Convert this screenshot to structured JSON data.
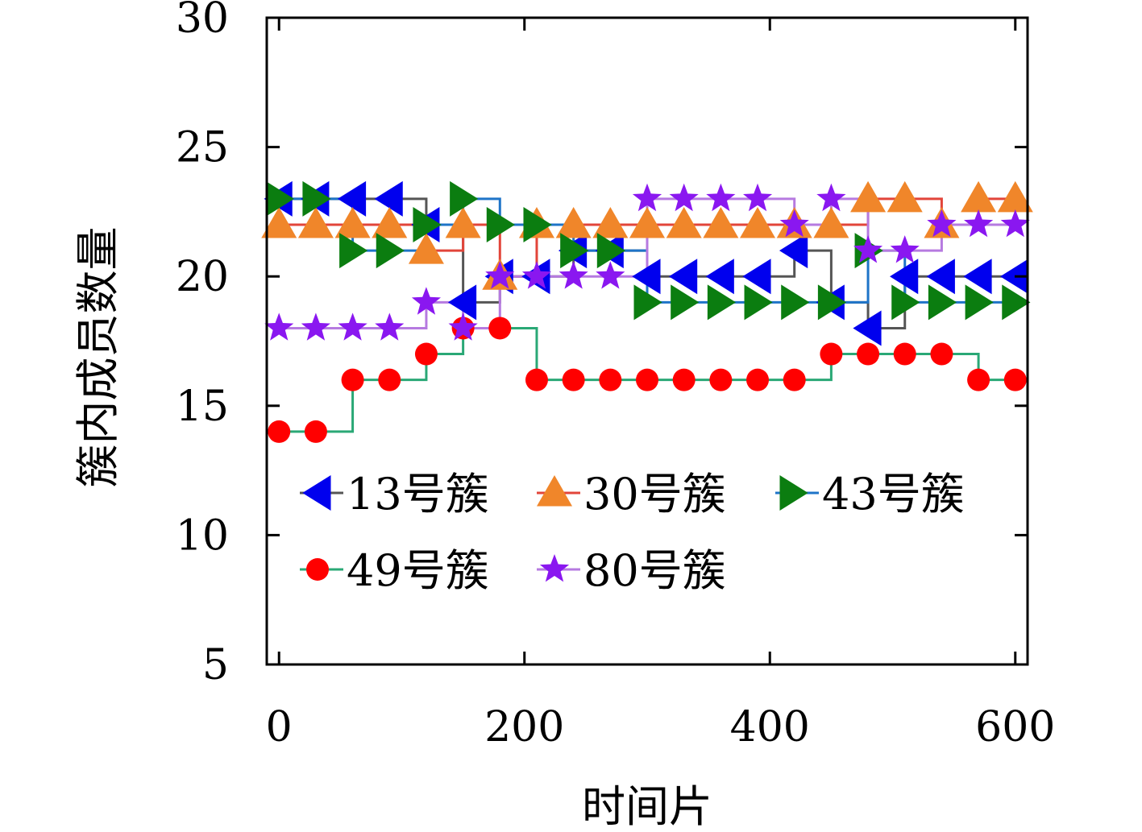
{
  "chart_data": {
    "type": "line",
    "xlabel": "时间片",
    "ylabel": "簇内成员数量",
    "xlim": [
      -10,
      610
    ],
    "ylim": [
      5,
      30
    ],
    "xticks": [
      0,
      200,
      400,
      600
    ],
    "yticks": [
      5,
      10,
      15,
      20,
      25,
      30
    ],
    "line_style": "step-post",
    "grid": false,
    "legend_placement": "lower-left, two rows",
    "x": [
      0,
      30,
      60,
      90,
      120,
      150,
      180,
      210,
      240,
      270,
      300,
      330,
      360,
      390,
      420,
      450,
      480,
      510,
      540,
      570,
      600
    ],
    "series": [
      {
        "name": "13号簇",
        "marker": "triangle-left",
        "marker_color": "#0000ee",
        "line_color": "#555555",
        "values": [
          23,
          23,
          23,
          23,
          22,
          19,
          20,
          20,
          21,
          21,
          20,
          20,
          20,
          20,
          21,
          19,
          18,
          20,
          20,
          20,
          20
        ]
      },
      {
        "name": "30号簇",
        "marker": "triangle-up",
        "marker_color": "#f0862a",
        "line_color": "#e2453a",
        "values": [
          22,
          22,
          22,
          22,
          21,
          22,
          20,
          22,
          22,
          22,
          22,
          22,
          22,
          22,
          22,
          22,
          23,
          23,
          22,
          23,
          23
        ]
      },
      {
        "name": "43号簇",
        "marker": "triangle-right",
        "marker_color": "#0b7d10",
        "line_color": "#1e74c8",
        "values": [
          23,
          23,
          21,
          21,
          22,
          23,
          22,
          22,
          21,
          21,
          19,
          19,
          19,
          19,
          19,
          19,
          21,
          19,
          19,
          19,
          19
        ]
      },
      {
        "name": "49号簇",
        "marker": "circle",
        "marker_color": "#ff0000",
        "line_color": "#2aa876",
        "values": [
          14,
          14,
          16,
          16,
          17,
          18,
          18,
          16,
          16,
          16,
          16,
          16,
          16,
          16,
          16,
          17,
          17,
          17,
          17,
          16,
          16
        ]
      },
      {
        "name": "80号簇",
        "marker": "star",
        "marker_color": "#8a17f0",
        "line_color": "#b67ae0",
        "values": [
          18,
          18,
          18,
          18,
          19,
          18,
          20,
          20,
          20,
          20,
          23,
          23,
          23,
          23,
          22,
          23,
          21,
          21,
          22,
          22,
          22
        ]
      }
    ]
  }
}
